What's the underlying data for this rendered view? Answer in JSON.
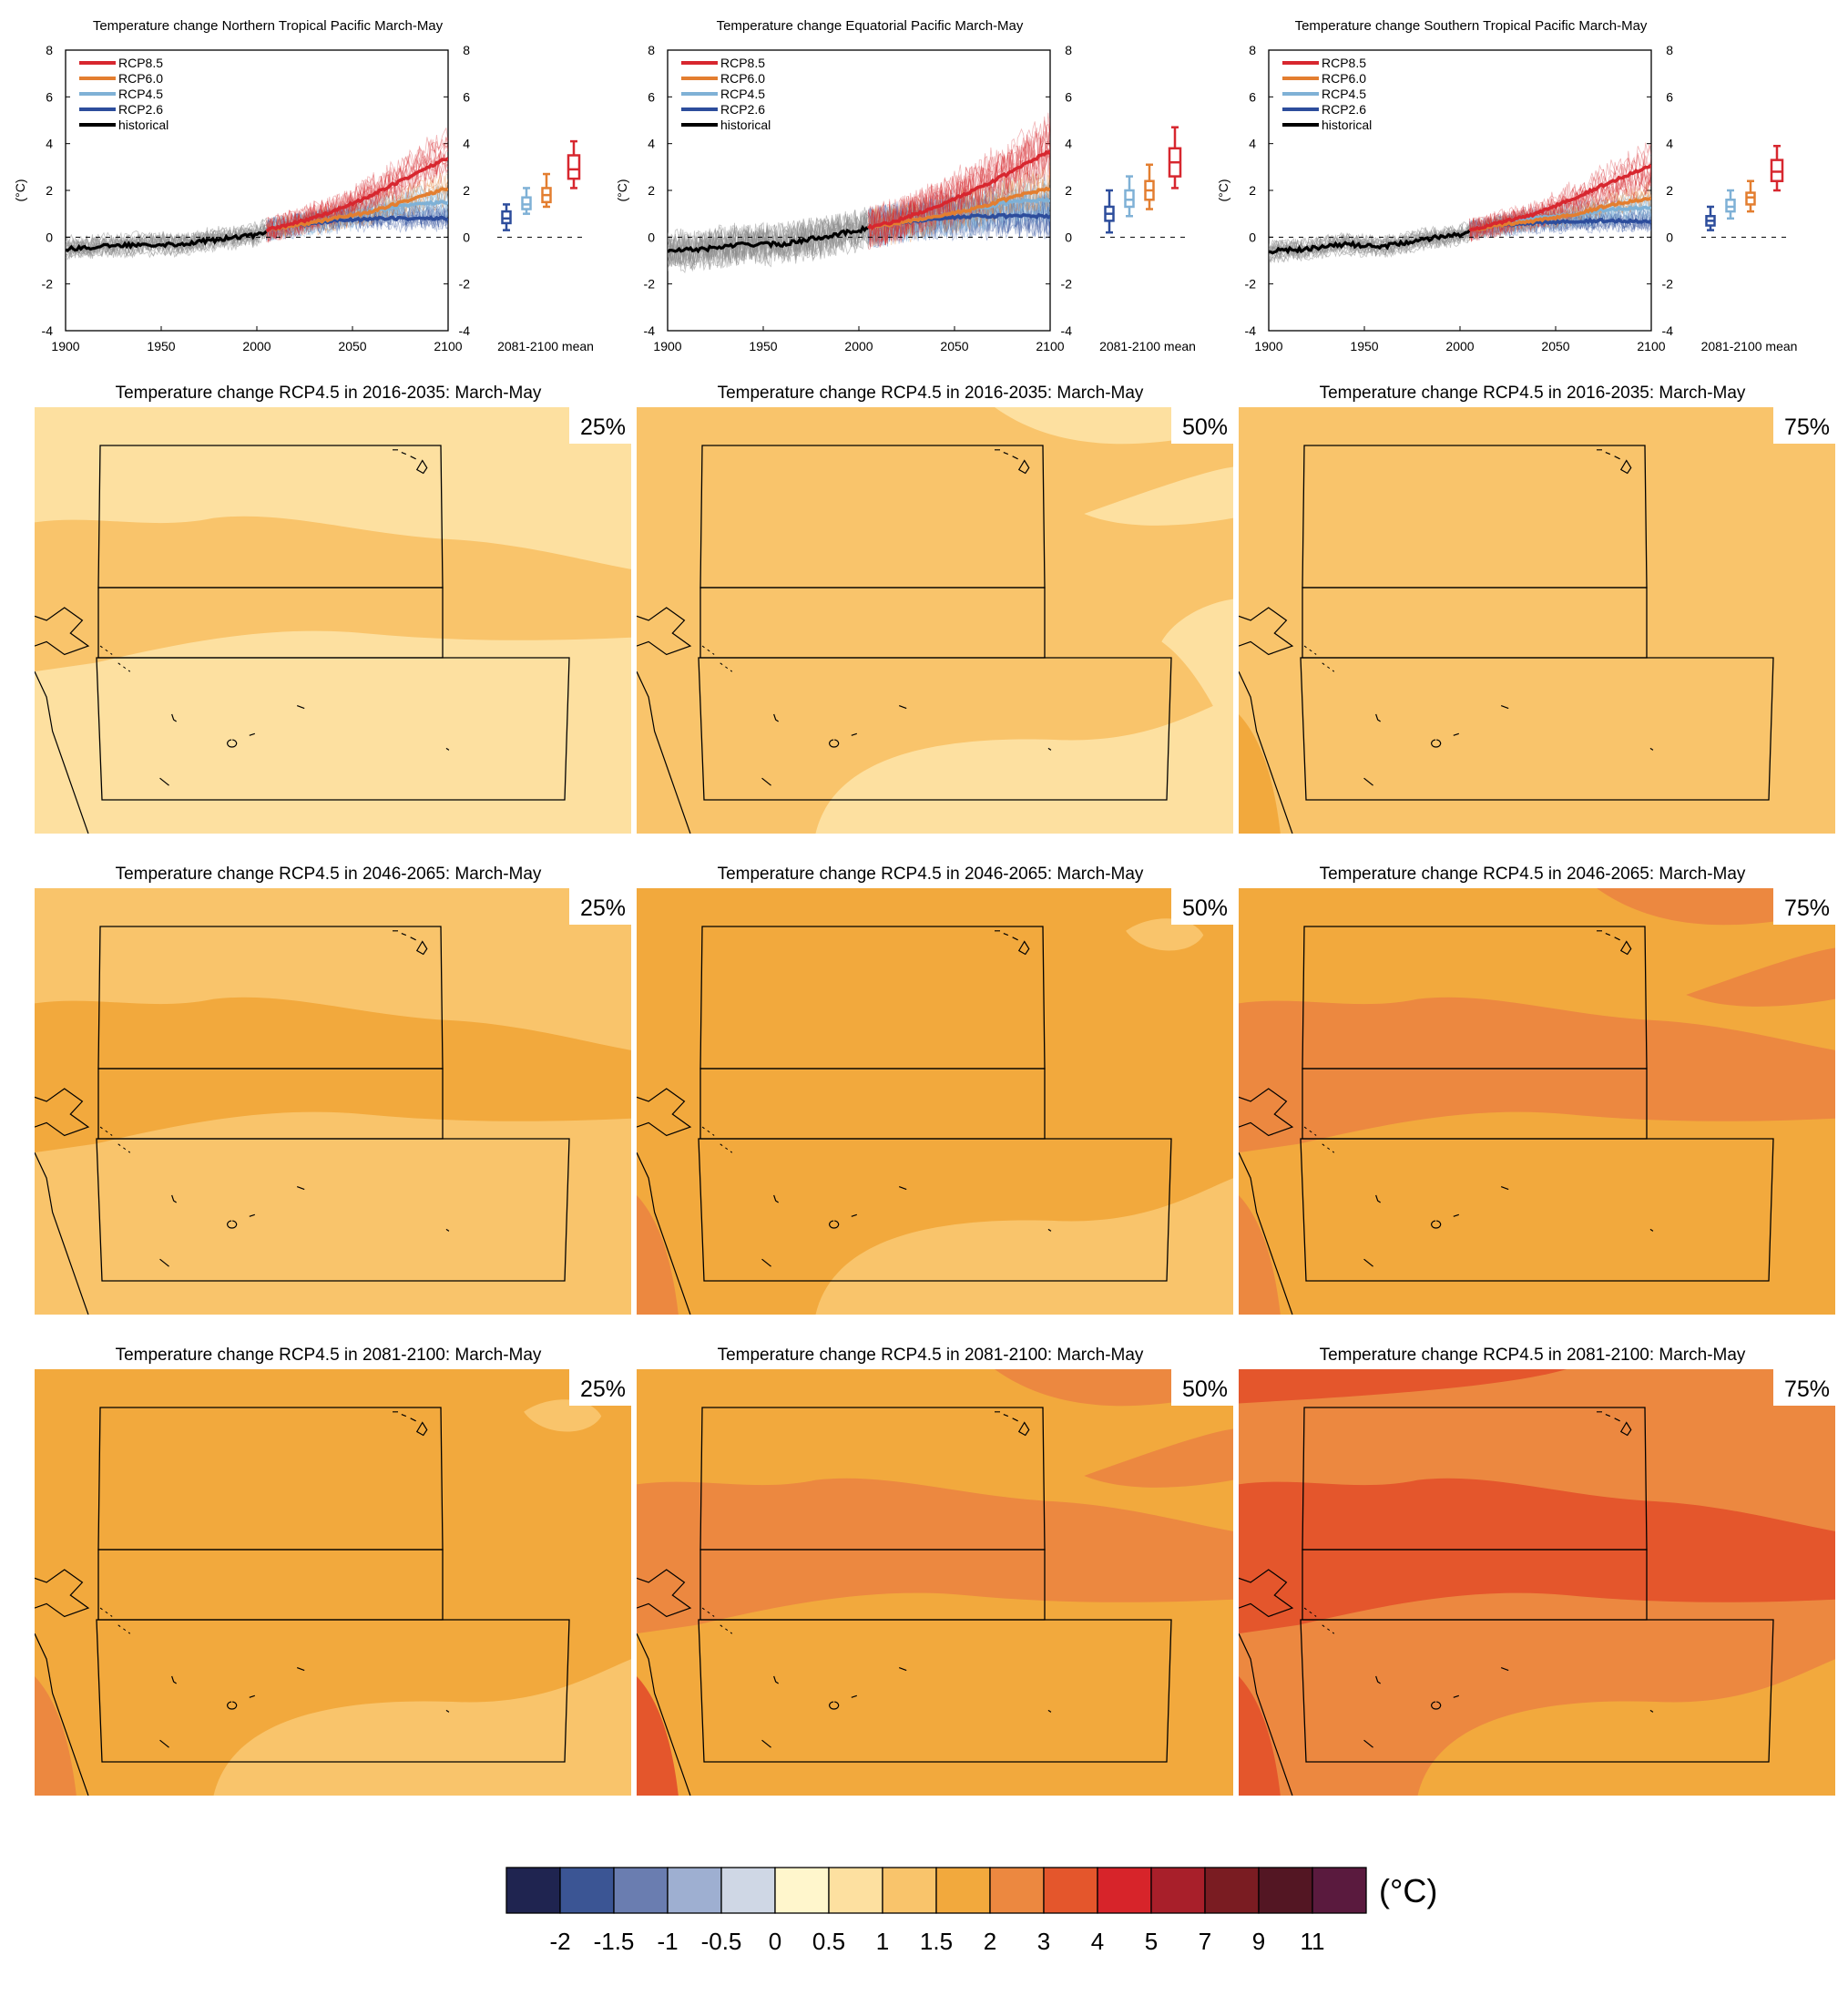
{
  "chart_data": [
    {
      "type": "line",
      "title": "Temperature change Northern Tropical Pacific March-May",
      "ylabel": "(°C)",
      "xlim": [
        1900,
        2100
      ],
      "ylim": [
        -4,
        8
      ],
      "x_ticks": [
        "1900",
        "1950",
        "2000",
        "2050",
        "2100"
      ],
      "y_ticks": [
        "-4",
        "-2",
        "0",
        "2",
        "4",
        "6",
        "8"
      ],
      "legend": [
        "RCP8.5",
        "RCP6.0",
        "RCP4.5",
        "RCP2.6",
        "historical"
      ],
      "x": [
        1900,
        1920,
        1940,
        1960,
        1980,
        2000,
        2005,
        2020,
        2040,
        2060,
        2080,
        2100
      ],
      "series": [
        {
          "name": "historical",
          "x": [
            1900,
            1920,
            1940,
            1960,
            1980,
            2000,
            2005
          ],
          "values": [
            -0.5,
            -0.4,
            -0.3,
            -0.3,
            -0.1,
            0.1,
            0.3
          ]
        },
        {
          "name": "RCP2.6",
          "x": [
            2005,
            2020,
            2040,
            2060,
            2080,
            2100
          ],
          "values": [
            0.3,
            0.5,
            0.7,
            0.8,
            0.8,
            0.8
          ]
        },
        {
          "name": "RCP4.5",
          "x": [
            2005,
            2020,
            2040,
            2060,
            2080,
            2100
          ],
          "values": [
            0.3,
            0.5,
            0.8,
            1.1,
            1.4,
            1.5
          ]
        },
        {
          "name": "RCP6.0",
          "x": [
            2005,
            2020,
            2040,
            2060,
            2080,
            2100
          ],
          "values": [
            0.3,
            0.5,
            0.8,
            1.1,
            1.6,
            2.1
          ]
        },
        {
          "name": "RCP8.5",
          "x": [
            2005,
            2020,
            2040,
            2060,
            2080,
            2100
          ],
          "values": [
            0.3,
            0.6,
            1.1,
            1.8,
            2.6,
            3.4
          ]
        }
      ],
      "boxplot_label": "2081-2100 mean",
      "boxplots": [
        {
          "name": "RCP2.6",
          "min": 0.3,
          "q1": 0.6,
          "median": 0.8,
          "q3": 1.1,
          "max": 1.4
        },
        {
          "name": "RCP4.5",
          "min": 1.0,
          "q1": 1.2,
          "median": 1.4,
          "q3": 1.7,
          "max": 2.1
        },
        {
          "name": "RCP6.0",
          "min": 1.3,
          "q1": 1.5,
          "median": 1.8,
          "q3": 2.1,
          "max": 2.7
        },
        {
          "name": "RCP8.5",
          "min": 2.1,
          "q1": 2.5,
          "median": 2.9,
          "q3": 3.5,
          "max": 4.1
        }
      ]
    },
    {
      "type": "line",
      "title": "Temperature change Equatorial Pacific March-May",
      "ylabel": "(°C)",
      "xlim": [
        1900,
        2100
      ],
      "ylim": [
        -4,
        8
      ],
      "x_ticks": [
        "1900",
        "1950",
        "2000",
        "2050",
        "2100"
      ],
      "y_ticks": [
        "-4",
        "-2",
        "0",
        "2",
        "4",
        "6",
        "8"
      ],
      "legend": [
        "RCP8.5",
        "RCP6.0",
        "RCP4.5",
        "RCP2.6",
        "historical"
      ],
      "x": [
        1900,
        1920,
        1940,
        1960,
        1980,
        2000,
        2005,
        2020,
        2040,
        2060,
        2080,
        2100
      ],
      "series": [
        {
          "name": "historical",
          "x": [
            1900,
            1920,
            1940,
            1960,
            1980,
            2000,
            2005
          ],
          "values": [
            -0.6,
            -0.5,
            -0.3,
            -0.3,
            0.0,
            0.3,
            0.4
          ]
        },
        {
          "name": "RCP2.6",
          "x": [
            2005,
            2020,
            2040,
            2060,
            2080,
            2100
          ],
          "values": [
            0.4,
            0.6,
            0.8,
            0.9,
            0.9,
            0.9
          ]
        },
        {
          "name": "RCP4.5",
          "x": [
            2005,
            2020,
            2040,
            2060,
            2080,
            2100
          ],
          "values": [
            0.4,
            0.6,
            0.9,
            1.2,
            1.5,
            1.6
          ]
        },
        {
          "name": "RCP6.0",
          "x": [
            2005,
            2020,
            2040,
            2060,
            2080,
            2100
          ],
          "values": [
            0.4,
            0.6,
            0.9,
            1.2,
            1.7,
            2.1
          ]
        },
        {
          "name": "RCP8.5",
          "x": [
            2005,
            2020,
            2040,
            2060,
            2080,
            2100
          ],
          "values": [
            0.4,
            0.7,
            1.3,
            2.0,
            2.8,
            3.7
          ]
        }
      ],
      "boxplot_label": "2081-2100 mean",
      "boxplots": [
        {
          "name": "RCP2.6",
          "min": 0.2,
          "q1": 0.7,
          "median": 1.0,
          "q3": 1.3,
          "max": 2.0
        },
        {
          "name": "RCP4.5",
          "min": 0.9,
          "q1": 1.3,
          "median": 1.6,
          "q3": 2.0,
          "max": 2.6
        },
        {
          "name": "RCP6.0",
          "min": 1.2,
          "q1": 1.6,
          "median": 2.0,
          "q3": 2.4,
          "max": 3.1
        },
        {
          "name": "RCP8.5",
          "min": 2.1,
          "q1": 2.6,
          "median": 3.2,
          "q3": 3.8,
          "max": 4.7
        }
      ]
    },
    {
      "type": "line",
      "title": "Temperature change Southern Tropical Pacific March-May",
      "ylabel": "(°C)",
      "xlim": [
        1900,
        2100
      ],
      "ylim": [
        -4,
        8
      ],
      "x_ticks": [
        "1900",
        "1950",
        "2000",
        "2050",
        "2100"
      ],
      "y_ticks": [
        "-4",
        "-2",
        "0",
        "2",
        "4",
        "6",
        "8"
      ],
      "legend": [
        "RCP8.5",
        "RCP6.0",
        "RCP4.5",
        "RCP2.6",
        "historical"
      ],
      "x": [
        1900,
        1920,
        1940,
        1960,
        1980,
        2000,
        2005,
        2020,
        2040,
        2060,
        2080,
        2100
      ],
      "series": [
        {
          "name": "historical",
          "x": [
            1900,
            1920,
            1940,
            1960,
            1980,
            2000,
            2005
          ],
          "values": [
            -0.6,
            -0.5,
            -0.3,
            -0.4,
            -0.1,
            0.1,
            0.3
          ]
        },
        {
          "name": "RCP2.6",
          "x": [
            2005,
            2020,
            2040,
            2060,
            2080,
            2100
          ],
          "values": [
            0.3,
            0.5,
            0.6,
            0.7,
            0.7,
            0.7
          ]
        },
        {
          "name": "RCP4.5",
          "x": [
            2005,
            2020,
            2040,
            2060,
            2080,
            2100
          ],
          "values": [
            0.3,
            0.5,
            0.8,
            1.0,
            1.2,
            1.3
          ]
        },
        {
          "name": "RCP6.0",
          "x": [
            2005,
            2020,
            2040,
            2060,
            2080,
            2100
          ],
          "values": [
            0.3,
            0.5,
            0.7,
            1.0,
            1.4,
            1.7
          ]
        },
        {
          "name": "RCP8.5",
          "x": [
            2005,
            2020,
            2040,
            2060,
            2080,
            2100
          ],
          "values": [
            0.3,
            0.6,
            1.0,
            1.7,
            2.4,
            3.1
          ]
        }
      ],
      "boxplot_label": "2081-2100 mean",
      "boxplots": [
        {
          "name": "RCP2.6",
          "min": 0.3,
          "q1": 0.5,
          "median": 0.7,
          "q3": 0.9,
          "max": 1.3
        },
        {
          "name": "RCP4.5",
          "min": 0.8,
          "q1": 1.1,
          "median": 1.3,
          "q3": 1.6,
          "max": 2.0
        },
        {
          "name": "RCP6.0",
          "min": 1.1,
          "q1": 1.4,
          "median": 1.7,
          "q3": 1.9,
          "max": 2.4
        },
        {
          "name": "RCP8.5",
          "min": 2.0,
          "q1": 2.4,
          "median": 2.8,
          "q3": 3.3,
          "max": 3.9
        }
      ]
    },
    {
      "type": "heatmap",
      "title": "Temperature change RCP4.5 in 2016-2035: March-May",
      "maps": [
        {
          "percentile": "25%",
          "base_level": 0.5,
          "patches": [
            {
              "shape": "band",
              "level": 1
            }
          ]
        },
        {
          "percentile": "50%",
          "base_level": 1,
          "patches": [
            {
              "shape": "corner-ne",
              "level": 0.5
            },
            {
              "shape": "band-south",
              "level": 0.5
            },
            {
              "shape": "edge-east",
              "level": 0.5
            }
          ]
        },
        {
          "percentile": "75%",
          "base_level": 1,
          "patches": [
            {
              "shape": "coast-sw",
              "level": 1.5
            }
          ]
        }
      ]
    },
    {
      "type": "heatmap",
      "title": "Temperature change RCP4.5 in 2046-2065: March-May",
      "maps": [
        {
          "percentile": "25%",
          "base_level": 1,
          "patches": [
            {
              "shape": "band",
              "level": 1.5
            }
          ]
        },
        {
          "percentile": "50%",
          "base_level": 1.5,
          "patches": [
            {
              "shape": "band-south",
              "level": 1
            },
            {
              "shape": "spot-ne",
              "level": 1
            },
            {
              "shape": "coast-sw",
              "level": 2
            }
          ]
        },
        {
          "percentile": "75%",
          "base_level": 1.5,
          "patches": [
            {
              "shape": "band",
              "level": 2
            },
            {
              "shape": "corner-ne",
              "level": 2
            },
            {
              "shape": "coast-sw",
              "level": 2
            }
          ]
        }
      ]
    },
    {
      "type": "heatmap",
      "title": "Temperature change RCP4.5 in 2081-2100: March-May",
      "maps": [
        {
          "percentile": "25%",
          "base_level": 1.5,
          "patches": [
            {
              "shape": "band-south",
              "level": 1
            },
            {
              "shape": "spot-ne",
              "level": 1
            },
            {
              "shape": "coast-sw",
              "level": 2
            }
          ]
        },
        {
          "percentile": "50%",
          "base_level": 1.5,
          "patches": [
            {
              "shape": "band",
              "level": 2
            },
            {
              "shape": "corner-ne",
              "level": 2
            },
            {
              "shape": "coast-sw",
              "level": 3
            }
          ]
        },
        {
          "percentile": "75%",
          "base_level": 2,
          "patches": [
            {
              "shape": "band",
              "level": 3
            },
            {
              "shape": "corner-nw",
              "level": 3
            },
            {
              "shape": "band-south",
              "level": 1.5
            },
            {
              "shape": "coast-sw",
              "level": 3
            }
          ]
        }
      ]
    }
  ],
  "colorbar": {
    "unit": "(°C)",
    "labels": [
      "-2",
      "-1.5",
      "-1",
      "-0.5",
      "0",
      "0.5",
      "1",
      "1.5",
      "2",
      "3",
      "4",
      "5",
      "7",
      "9",
      "11"
    ],
    "colors": [
      "#1f2450",
      "#3b5594",
      "#6a7db0",
      "#9eafd1",
      "#cfd7e5",
      "#fff6cc",
      "#fde0a0",
      "#f9c46b",
      "#f2a93d",
      "#ec8840",
      "#e4562c",
      "#d7242a",
      "#a81f2a",
      "#7a1c22",
      "#531623",
      "#5a1a3e"
    ]
  },
  "colors": {
    "RCP8.5": "#d7272f",
    "RCP6.0": "#e37e30",
    "RCP4.5": "#7fb1d6",
    "RCP2.6": "#2d4d9c",
    "historical": "#000000",
    "historical_spread": "#8e8e8e"
  }
}
